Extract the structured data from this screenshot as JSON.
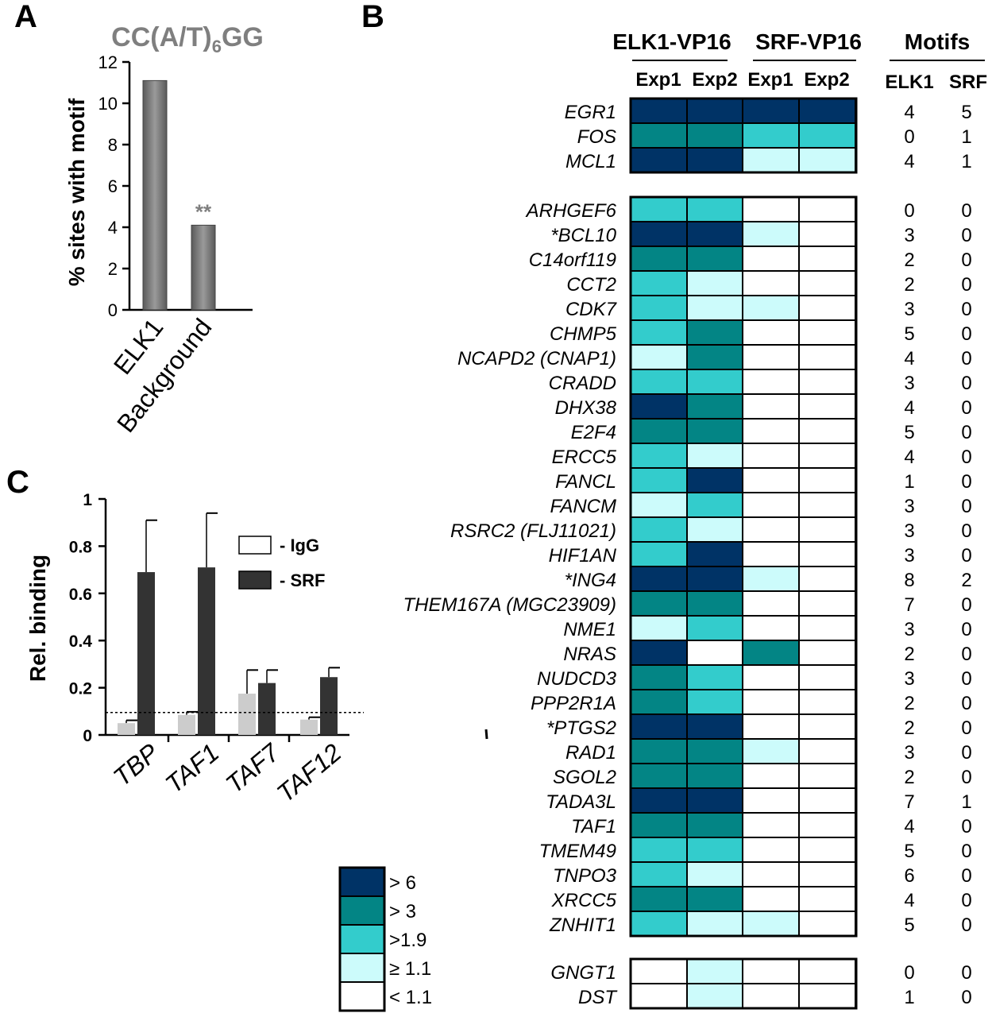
{
  "panels": {
    "a": "A",
    "b": "B",
    "c": "C"
  },
  "chart_data": [
    {
      "type": "bar",
      "panel": "A",
      "title_main": "CC(A/T)",
      "title_sub": "6",
      "title_end": "GG",
      "ylabel": "% sites with motif",
      "xlabel": "",
      "categories": [
        "ELK1",
        "Background"
      ],
      "values": [
        11.1,
        4.1
      ],
      "ylim": [
        0,
        12
      ],
      "yticks": [
        "0",
        "2",
        "4",
        "6",
        "8",
        "10",
        "12"
      ],
      "annotation": "**",
      "bar_color": "#777777",
      "grid": false
    },
    {
      "type": "heatmap",
      "panel": "B",
      "group_headers": [
        "ELK1-VP16",
        "SRF-VP16",
        "Motifs"
      ],
      "columns": [
        "Exp1",
        "Exp2",
        "Exp1",
        "Exp2"
      ],
      "motif_columns": [
        "ELK1",
        "SRF"
      ],
      "levels": [
        "< 1.1",
        "≥ 1.1",
        ">1.9",
        "> 3",
        "> 6"
      ],
      "colors": [
        "#ffffff",
        "#ccfbfb",
        "#33cccc",
        "#038585",
        "#003366"
      ],
      "groups": [
        [
          {
            "gene": "EGR1",
            "cells": [
              4,
              4,
              4,
              4
            ],
            "motifs": [
              "4",
              "5"
            ]
          },
          {
            "gene": "FOS",
            "cells": [
              3,
              3,
              2,
              2
            ],
            "motifs": [
              "0",
              "1"
            ]
          },
          {
            "gene": "MCL1",
            "cells": [
              4,
              4,
              1,
              1
            ],
            "motifs": [
              "4",
              "1"
            ]
          }
        ],
        [
          {
            "gene": "ARHGEF6",
            "cells": [
              2,
              2,
              0,
              0
            ],
            "motifs": [
              "0",
              "0"
            ]
          },
          {
            "gene": "*BCL10",
            "cells": [
              4,
              4,
              1,
              0
            ],
            "motifs": [
              "3",
              "0"
            ]
          },
          {
            "gene": "C14orf119",
            "cells": [
              3,
              3,
              0,
              0
            ],
            "motifs": [
              "2",
              "0"
            ]
          },
          {
            "gene": "CCT2",
            "cells": [
              2,
              1,
              0,
              0
            ],
            "motifs": [
              "2",
              "0"
            ]
          },
          {
            "gene": "CDK7",
            "cells": [
              2,
              1,
              1,
              0
            ],
            "motifs": [
              "3",
              "0"
            ]
          },
          {
            "gene": "CHMP5",
            "cells": [
              2,
              3,
              0,
              0
            ],
            "motifs": [
              "5",
              "0"
            ]
          },
          {
            "gene": "NCAPD2 (CNAP1)",
            "cells": [
              1,
              3,
              0,
              0
            ],
            "motifs": [
              "4",
              "0"
            ]
          },
          {
            "gene": "CRADD",
            "cells": [
              2,
              2,
              0,
              0
            ],
            "motifs": [
              "3",
              "0"
            ]
          },
          {
            "gene": "DHX38",
            "cells": [
              4,
              3,
              0,
              0
            ],
            "motifs": [
              "4",
              "0"
            ]
          },
          {
            "gene": "E2F4",
            "cells": [
              3,
              3,
              0,
              0
            ],
            "motifs": [
              "5",
              "0"
            ]
          },
          {
            "gene": "ERCC5",
            "cells": [
              2,
              1,
              0,
              0
            ],
            "motifs": [
              "4",
              "0"
            ]
          },
          {
            "gene": "FANCL",
            "cells": [
              2,
              4,
              0,
              0
            ],
            "motifs": [
              "1",
              "0"
            ]
          },
          {
            "gene": "FANCM",
            "cells": [
              1,
              2,
              0,
              0
            ],
            "motifs": [
              "3",
              "0"
            ]
          },
          {
            "gene": "RSRC2 (FLJ11021)",
            "cells": [
              2,
              1,
              0,
              0
            ],
            "motifs": [
              "3",
              "0"
            ]
          },
          {
            "gene": "HIF1AN",
            "cells": [
              2,
              4,
              0,
              0
            ],
            "motifs": [
              "3",
              "0"
            ]
          },
          {
            "gene": "*ING4",
            "cells": [
              4,
              4,
              1,
              0
            ],
            "motifs": [
              "8",
              "2"
            ]
          },
          {
            "gene": "THEM167A (MGC23909)",
            "cells": [
              3,
              3,
              0,
              0
            ],
            "motifs": [
              "7",
              "0"
            ]
          },
          {
            "gene": "NME1",
            "cells": [
              1,
              2,
              0,
              0
            ],
            "motifs": [
              "3",
              "0"
            ]
          },
          {
            "gene": "NRAS",
            "cells": [
              4,
              0,
              3,
              0
            ],
            "motifs": [
              "2",
              "0"
            ]
          },
          {
            "gene": "NUDCD3",
            "cells": [
              3,
              2,
              0,
              0
            ],
            "motifs": [
              "3",
              "0"
            ]
          },
          {
            "gene": "PPP2R1A",
            "cells": [
              3,
              2,
              0,
              0
            ],
            "motifs": [
              "2",
              "0"
            ]
          },
          {
            "gene": "*PTGS2",
            "cells": [
              4,
              4,
              0,
              0
            ],
            "motifs": [
              "2",
              "0"
            ]
          },
          {
            "gene": "RAD1",
            "cells": [
              3,
              3,
              1,
              0
            ],
            "motifs": [
              "3",
              "0"
            ]
          },
          {
            "gene": "SGOL2",
            "cells": [
              3,
              3,
              0,
              0
            ],
            "motifs": [
              "2",
              "0"
            ]
          },
          {
            "gene": "TADA3L",
            "cells": [
              4,
              4,
              0,
              0
            ],
            "motifs": [
              "7",
              "1"
            ]
          },
          {
            "gene": "TAF1",
            "cells": [
              3,
              3,
              0,
              0
            ],
            "motifs": [
              "4",
              "0"
            ]
          },
          {
            "gene": "TMEM49",
            "cells": [
              2,
              2,
              0,
              0
            ],
            "motifs": [
              "5",
              "0"
            ]
          },
          {
            "gene": "TNPO3",
            "cells": [
              2,
              1,
              0,
              0
            ],
            "motifs": [
              "6",
              "0"
            ]
          },
          {
            "gene": "XRCC5",
            "cells": [
              3,
              3,
              0,
              0
            ],
            "motifs": [
              "4",
              "0"
            ]
          },
          {
            "gene": "ZNHIT1",
            "cells": [
              2,
              1,
              1,
              0
            ],
            "motifs": [
              "5",
              "0"
            ]
          }
        ],
        [
          {
            "gene": "GNGT1",
            "cells": [
              0,
              1,
              0,
              0
            ],
            "motifs": [
              "0",
              "0"
            ]
          },
          {
            "gene": "DST",
            "cells": [
              0,
              1,
              0,
              0
            ],
            "motifs": [
              "1",
              "0"
            ]
          }
        ]
      ]
    },
    {
      "type": "bar",
      "panel": "C",
      "ylabel": "Rel. binding",
      "xlabel": "",
      "categories": [
        "TBP",
        "TAF1",
        "TAF7",
        "TAF12"
      ],
      "series": [
        {
          "name": "- IgG",
          "values": [
            0.05,
            0.085,
            0.175,
            0.065
          ],
          "errors": [
            0.012,
            0.013,
            0.1,
            0.01
          ],
          "color": "#cccccc"
        },
        {
          "name": "- SRF",
          "values": [
            0.69,
            0.71,
            0.22,
            0.245
          ],
          "errors": [
            0.22,
            0.23,
            0.055,
            0.04
          ],
          "color": "#333333"
        }
      ],
      "ylim": [
        0,
        1
      ],
      "yticks": [
        "0",
        "0.2",
        "0.4",
        "0.6",
        "0.8",
        "1"
      ],
      "threshold": 0.095,
      "legend_position": "top-right",
      "grid": false
    }
  ]
}
